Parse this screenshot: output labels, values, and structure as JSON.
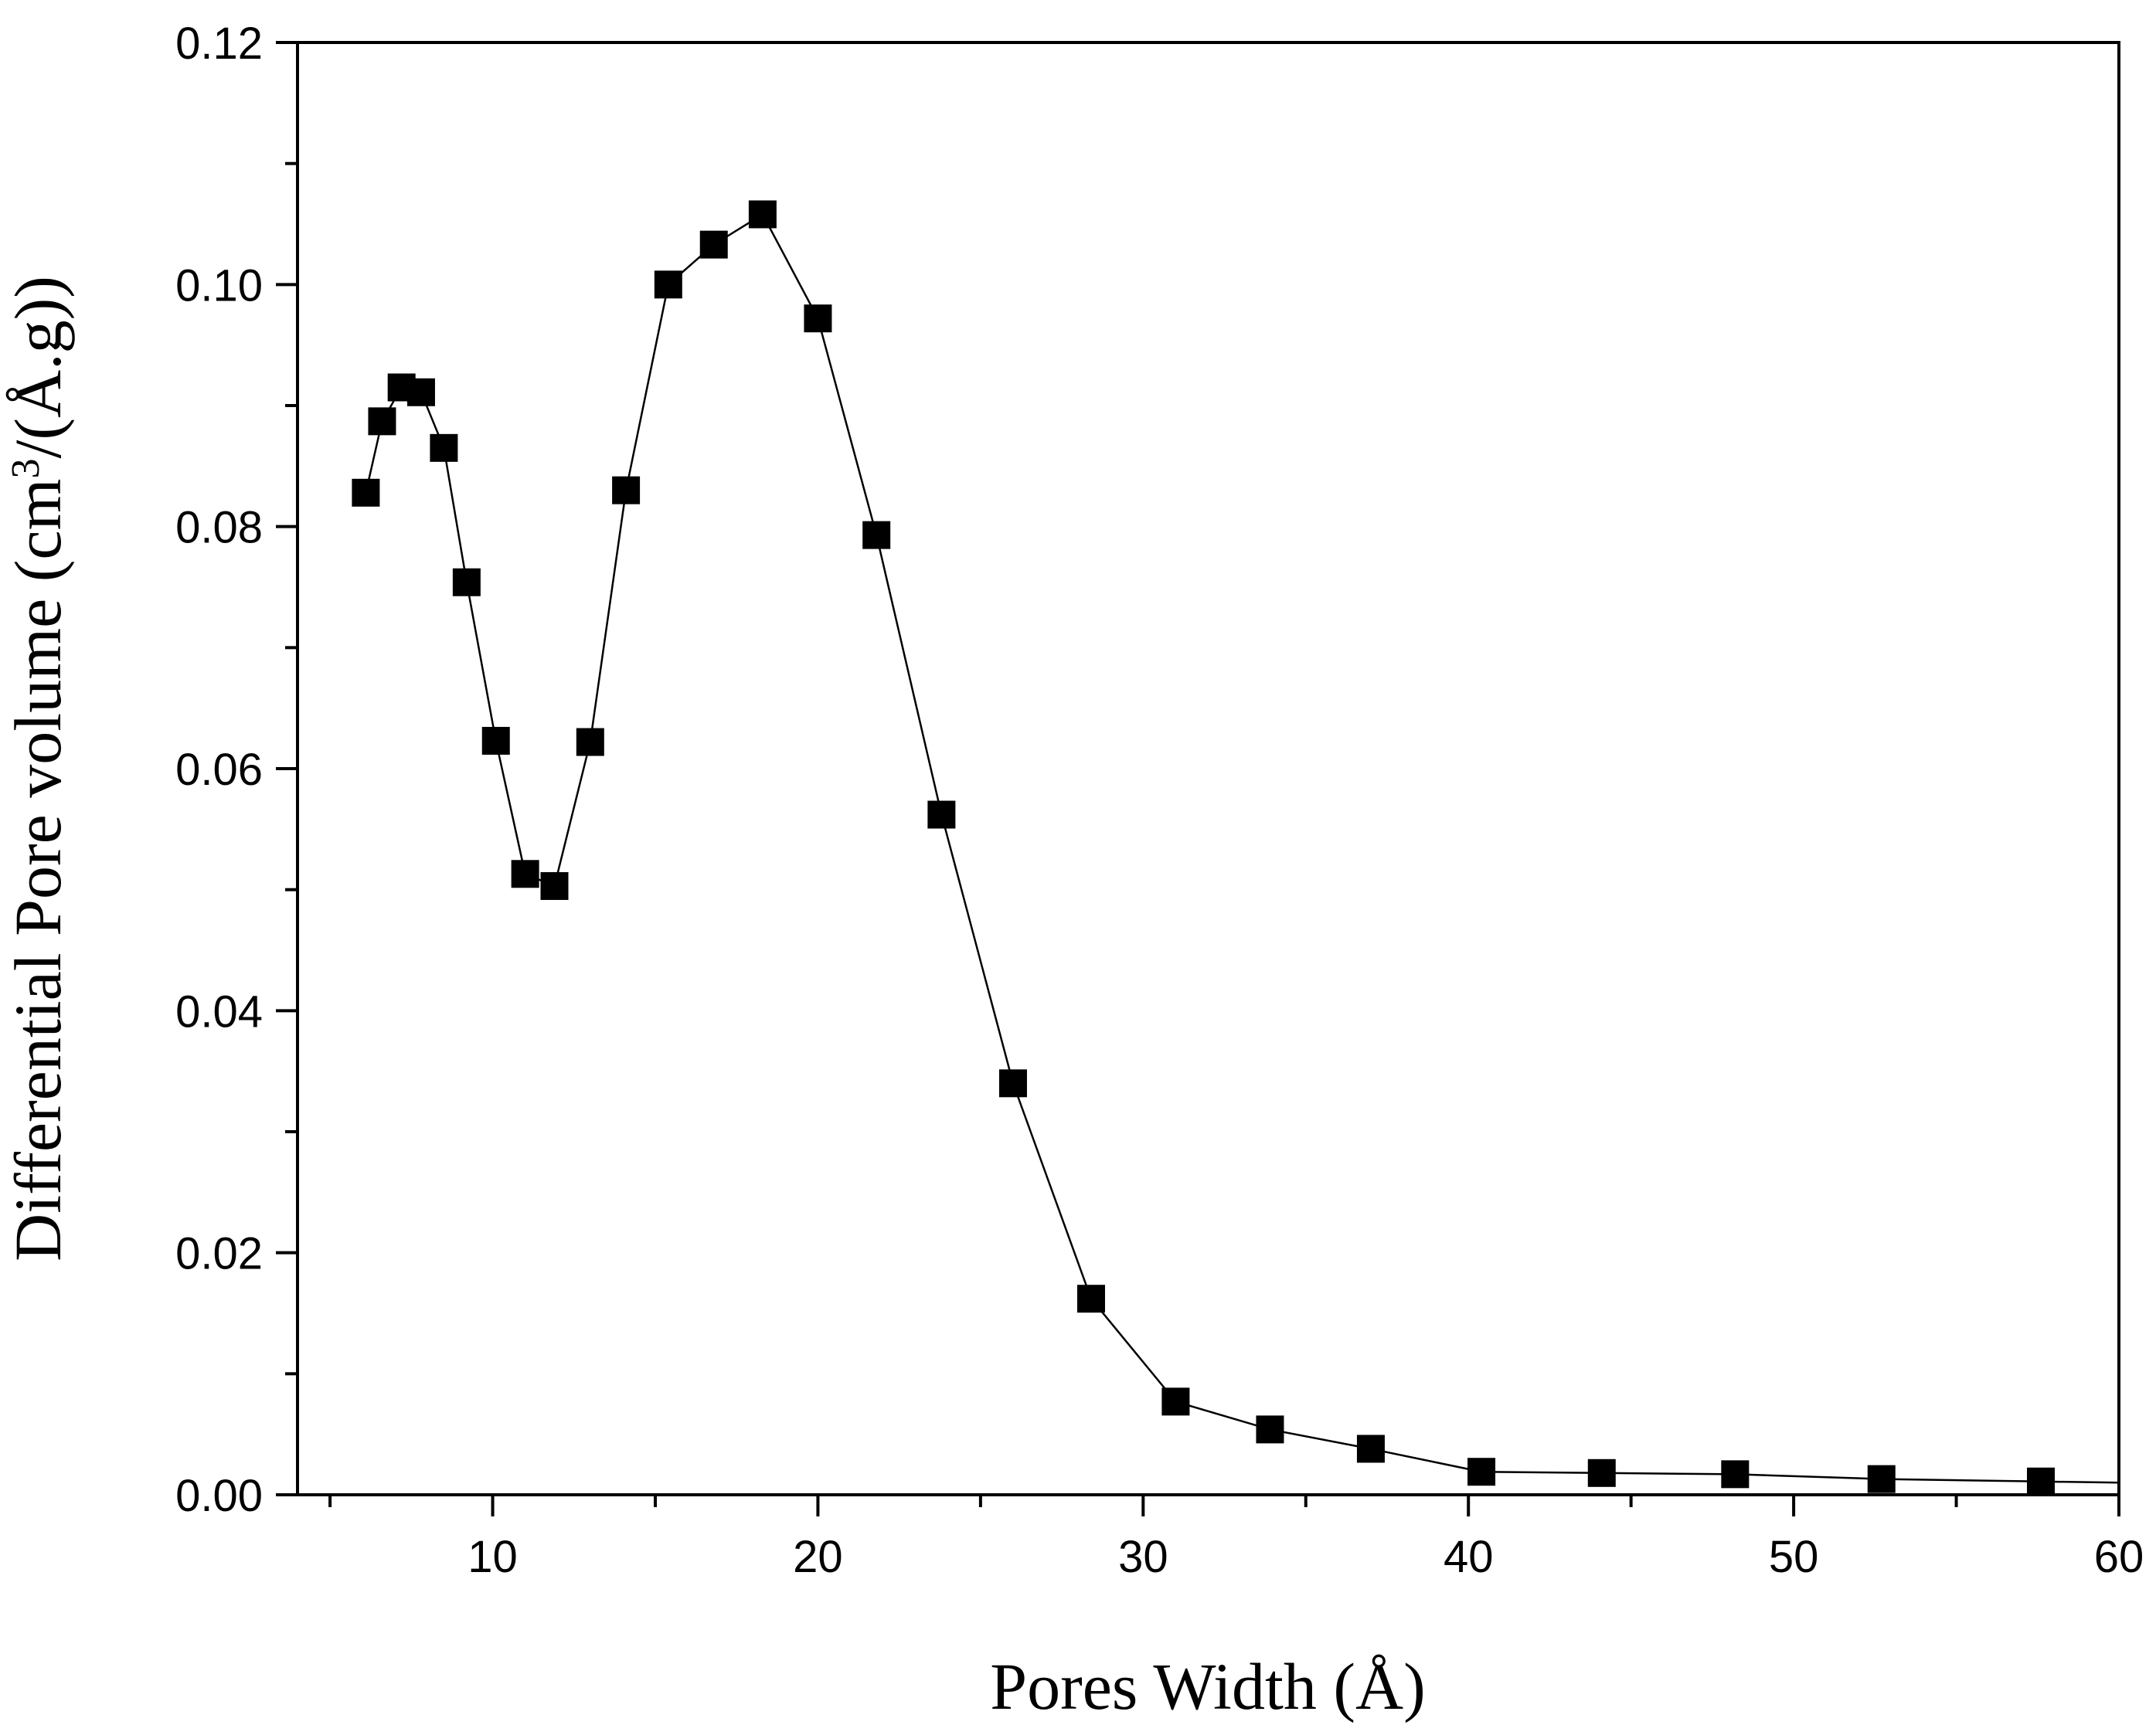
{
  "chart_data": {
    "type": "line",
    "title": "",
    "xlabel": "Pores Width (Å)",
    "ylabel_parts": {
      "before_sup": "Differential Pore volume (cm",
      "sup": "3",
      "after_sup": "/(Å.g))"
    },
    "xlim": [
      4,
      60
    ],
    "ylim": [
      0,
      0.12
    ],
    "x_major_ticks": [
      10,
      20,
      30,
      40,
      50,
      60
    ],
    "x_tick_labels": [
      "10",
      "20",
      "30",
      "40",
      "50",
      "60"
    ],
    "x_minor_ticks": [
      5,
      15,
      25,
      35,
      45,
      55
    ],
    "y_major_ticks": [
      0,
      0.02,
      0.04,
      0.06,
      0.08,
      0.1,
      0.12
    ],
    "y_tick_labels": [
      "0.00",
      "0.02",
      "0.04",
      "0.06",
      "0.08",
      "0.10",
      "0.12"
    ],
    "y_minor_ticks": [
      0.01,
      0.03,
      0.05,
      0.07,
      0.09,
      0.11
    ],
    "grid": false,
    "marker": "square",
    "series": [
      {
        "name": "Differential Pore volume",
        "color": "#000000",
        "x": [
          6.1,
          6.6,
          7.2,
          7.8,
          8.5,
          9.2,
          10.1,
          11.0,
          11.9,
          13.0,
          14.1,
          15.4,
          16.8,
          18.3,
          20.0,
          21.8,
          23.8,
          26.0,
          28.4,
          31.0,
          33.9,
          37.0,
          40.4,
          44.1,
          48.2,
          52.7,
          57.6,
          60.0
        ],
        "y": [
          0.0828,
          0.0887,
          0.0915,
          0.0911,
          0.0865,
          0.0754,
          0.0623,
          0.0513,
          0.0503,
          0.0622,
          0.083,
          0.1,
          0.1033,
          0.1058,
          0.0972,
          0.0793,
          0.0562,
          0.034,
          0.0162,
          0.0077,
          0.0054,
          0.0038,
          0.0019,
          0.0018,
          0.0017,
          0.0013,
          0.0011,
          0.001
        ],
        "marker_flags": [
          1,
          1,
          1,
          1,
          1,
          1,
          1,
          1,
          1,
          1,
          1,
          1,
          1,
          1,
          1,
          1,
          1,
          1,
          1,
          1,
          1,
          1,
          1,
          1,
          1,
          1,
          1,
          0
        ]
      }
    ]
  }
}
